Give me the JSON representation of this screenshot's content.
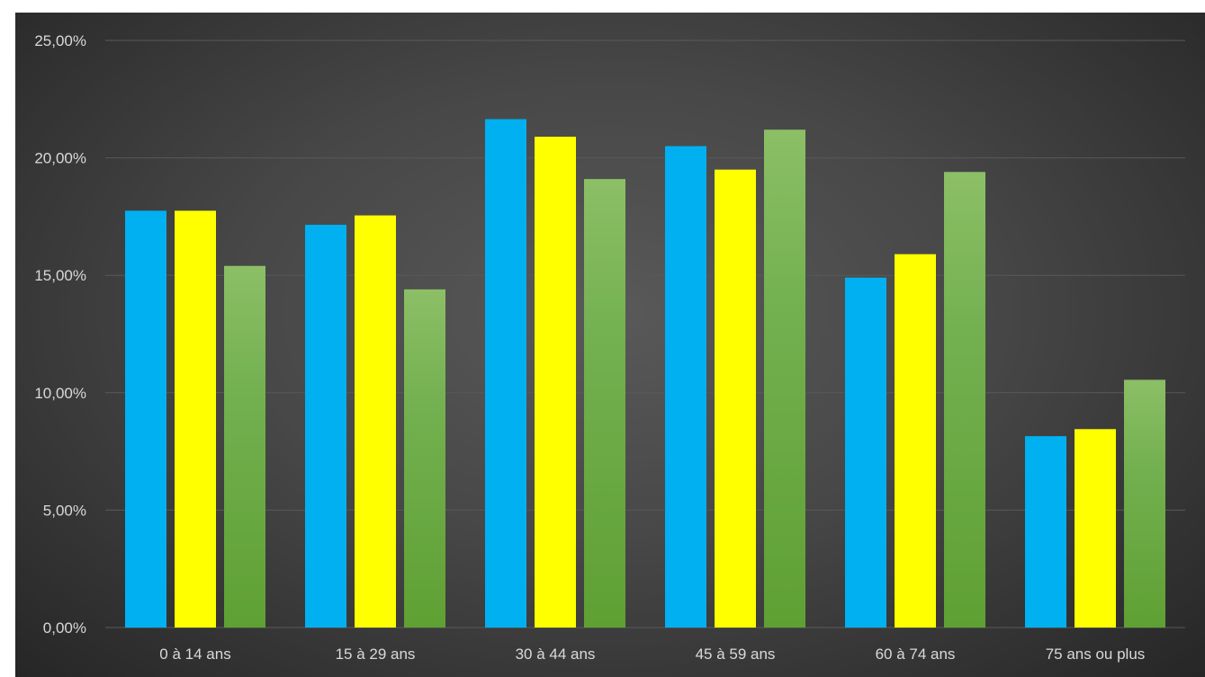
{
  "chart_data": {
    "type": "bar",
    "categories": [
      "0 à 14 ans",
      "15 à 29 ans",
      "30 à 44 ans",
      "45 à 59 ans",
      "60 à 74 ans",
      "75 ans ou plus"
    ],
    "series": [
      {
        "values": [
          17.75,
          17.15,
          21.65,
          20.5,
          14.9,
          8.15
        ],
        "color": "#00b0f0"
      },
      {
        "values": [
          17.75,
          17.55,
          20.9,
          19.5,
          15.9,
          8.45
        ],
        "color": "#ffff00"
      },
      {
        "values": [
          15.4,
          14.4,
          19.1,
          21.2,
          19.4,
          10.55
        ],
        "color": "#70ad47"
      }
    ],
    "y_ticks": [
      "0,00%",
      "5,00%",
      "10,00%",
      "15,00%",
      "20,00%",
      "25,00%"
    ],
    "y_tick_values": [
      0,
      5,
      10,
      15,
      20,
      25
    ],
    "ylim": [
      0,
      25
    ],
    "grid": true,
    "legend": "none",
    "background": "#404040",
    "gridline_color": "#595959",
    "text_color": "#d9d9d9"
  }
}
